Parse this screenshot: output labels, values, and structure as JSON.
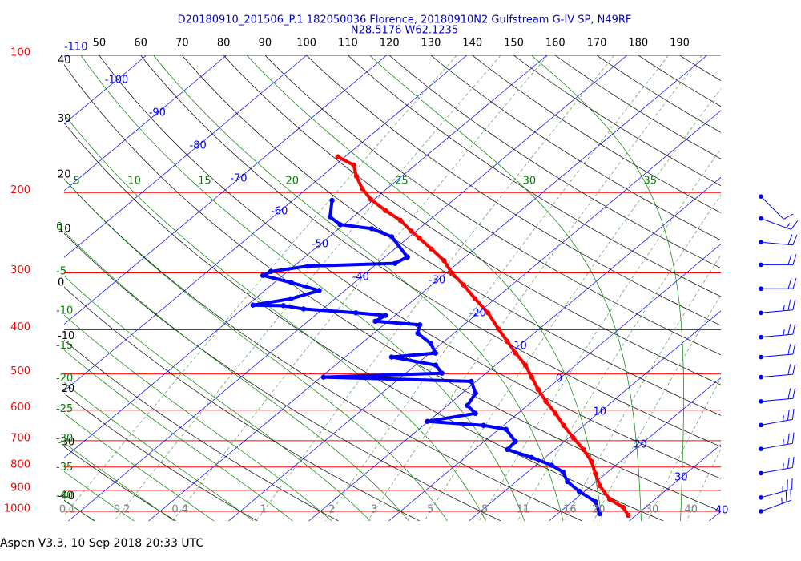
{
  "chart_data": {
    "type": "skewt",
    "title": "D20180910_201506_P.1 182050036 Florence, 20180910N2 Gulfstream G-IV SP, N49RF",
    "subtitle": "N28.5176 W62.1235",
    "title_color": "#0000cc",
    "log_scale": true,
    "ylim": [
      100,
      1050
    ],
    "yticks": [
      100,
      200,
      300,
      400,
      500,
      600,
      700,
      800,
      900,
      1000
    ],
    "isobar_color": "#ff0000",
    "xlim": [
      -42,
      40
    ],
    "isotherms": {
      "color": "#0000ff",
      "labels": [
        -110,
        -100,
        -90,
        -80,
        -70,
        -60,
        -50,
        -40,
        -30,
        -20,
        -10,
        0,
        10,
        20,
        30,
        40
      ]
    },
    "dry_adiabats": {
      "color": "#000000",
      "left_labels": [
        40,
        30,
        20,
        10,
        0,
        -10,
        -20,
        -30,
        -40
      ],
      "top_labels": [
        50,
        60,
        70,
        80,
        90,
        100,
        110,
        120,
        130,
        140,
        150,
        160,
        170,
        180,
        190
      ]
    },
    "moist_adiabats": {
      "color": "#008000",
      "top_labels": [
        5,
        10,
        15,
        20,
        25,
        30,
        35
      ],
      "left_labels": [
        0,
        -5,
        -10,
        -15,
        -20,
        -25,
        -30,
        -35,
        -40
      ]
    },
    "mixing_ratio": {
      "color": "#808080",
      "line_color": "#5a9a5a",
      "labels": [
        0.1,
        0.2,
        0.4,
        1,
        2,
        3,
        5,
        8,
        11,
        16,
        20,
        30,
        40
      ]
    },
    "temperature": {
      "color": "#ff0000",
      "pressure": [
        167,
        174,
        184,
        196,
        207,
        219,
        230,
        243,
        252,
        266,
        282,
        300,
        319,
        342,
        367,
        398,
        424,
        450,
        478,
        508,
        540,
        574,
        610,
        648,
        689,
        732,
        778,
        827,
        878,
        941,
        980,
        1020
      ],
      "values": [
        -60.9,
        -57.7,
        -55.7,
        -53.1,
        -50.4,
        -46.9,
        -43.6,
        -40.6,
        -38.5,
        -35.4,
        -32.1,
        -29.3,
        -26.0,
        -22.5,
        -18.8,
        -15.1,
        -12.1,
        -9.3,
        -6.3,
        -3.7,
        -1.1,
        1.7,
        4.7,
        7.5,
        10.5,
        13.6,
        16.4,
        18.7,
        21.0,
        24.3,
        27.2,
        29.0
      ]
    },
    "dewpoint": {
      "color": "#0000ff",
      "pressure": [
        208,
        226,
        235,
        240,
        250,
        277,
        286,
        290,
        298,
        304,
        315,
        328,
        342,
        353,
        354,
        360,
        367,
        372,
        383,
        390,
        407,
        429,
        450,
        459,
        478,
        498,
        508,
        519,
        551,
        586,
        610,
        635,
        648,
        661,
        703,
        732,
        762,
        793,
        820,
        861,
        904,
        953,
        1012
      ],
      "values": [
        -55.1,
        -52.9,
        -50.5,
        -45.9,
        -42.2,
        -37.2,
        -37.8,
        -48.3,
        -52.1,
        -52.5,
        -47.9,
        -43.2,
        -45.5,
        -49.3,
        -45.4,
        -42.4,
        -35.3,
        -31.2,
        -31.6,
        -25.5,
        -24.5,
        -21.3,
        -19.3,
        -24.2,
        -17.5,
        -15.5,
        -29.7,
        -10.6,
        -8.3,
        -7.5,
        -5.3,
        -10.1,
        -2.5,
        0.9,
        3.9,
        4.1,
        8.3,
        12.0,
        14.4,
        16.4,
        19.3,
        22.9,
        25.2
      ]
    },
    "winds": {
      "color": "#0000ff",
      "pressure": [
        204,
        228,
        257,
        288,
        325,
        367,
        415,
        459,
        508,
        574,
        647,
        730,
        825,
        933,
        1000
      ],
      "direction": [
        135,
        110,
        95,
        90,
        90,
        85,
        85,
        85,
        85,
        85,
        80,
        80,
        80,
        75,
        70
      ],
      "speed": [
        10,
        15,
        20,
        20,
        20,
        25,
        25,
        20,
        20,
        20,
        25,
        25,
        25,
        25,
        25
      ]
    }
  },
  "footer": "Aspen V3.3, 10 Sep 2018  20:33 UTC"
}
